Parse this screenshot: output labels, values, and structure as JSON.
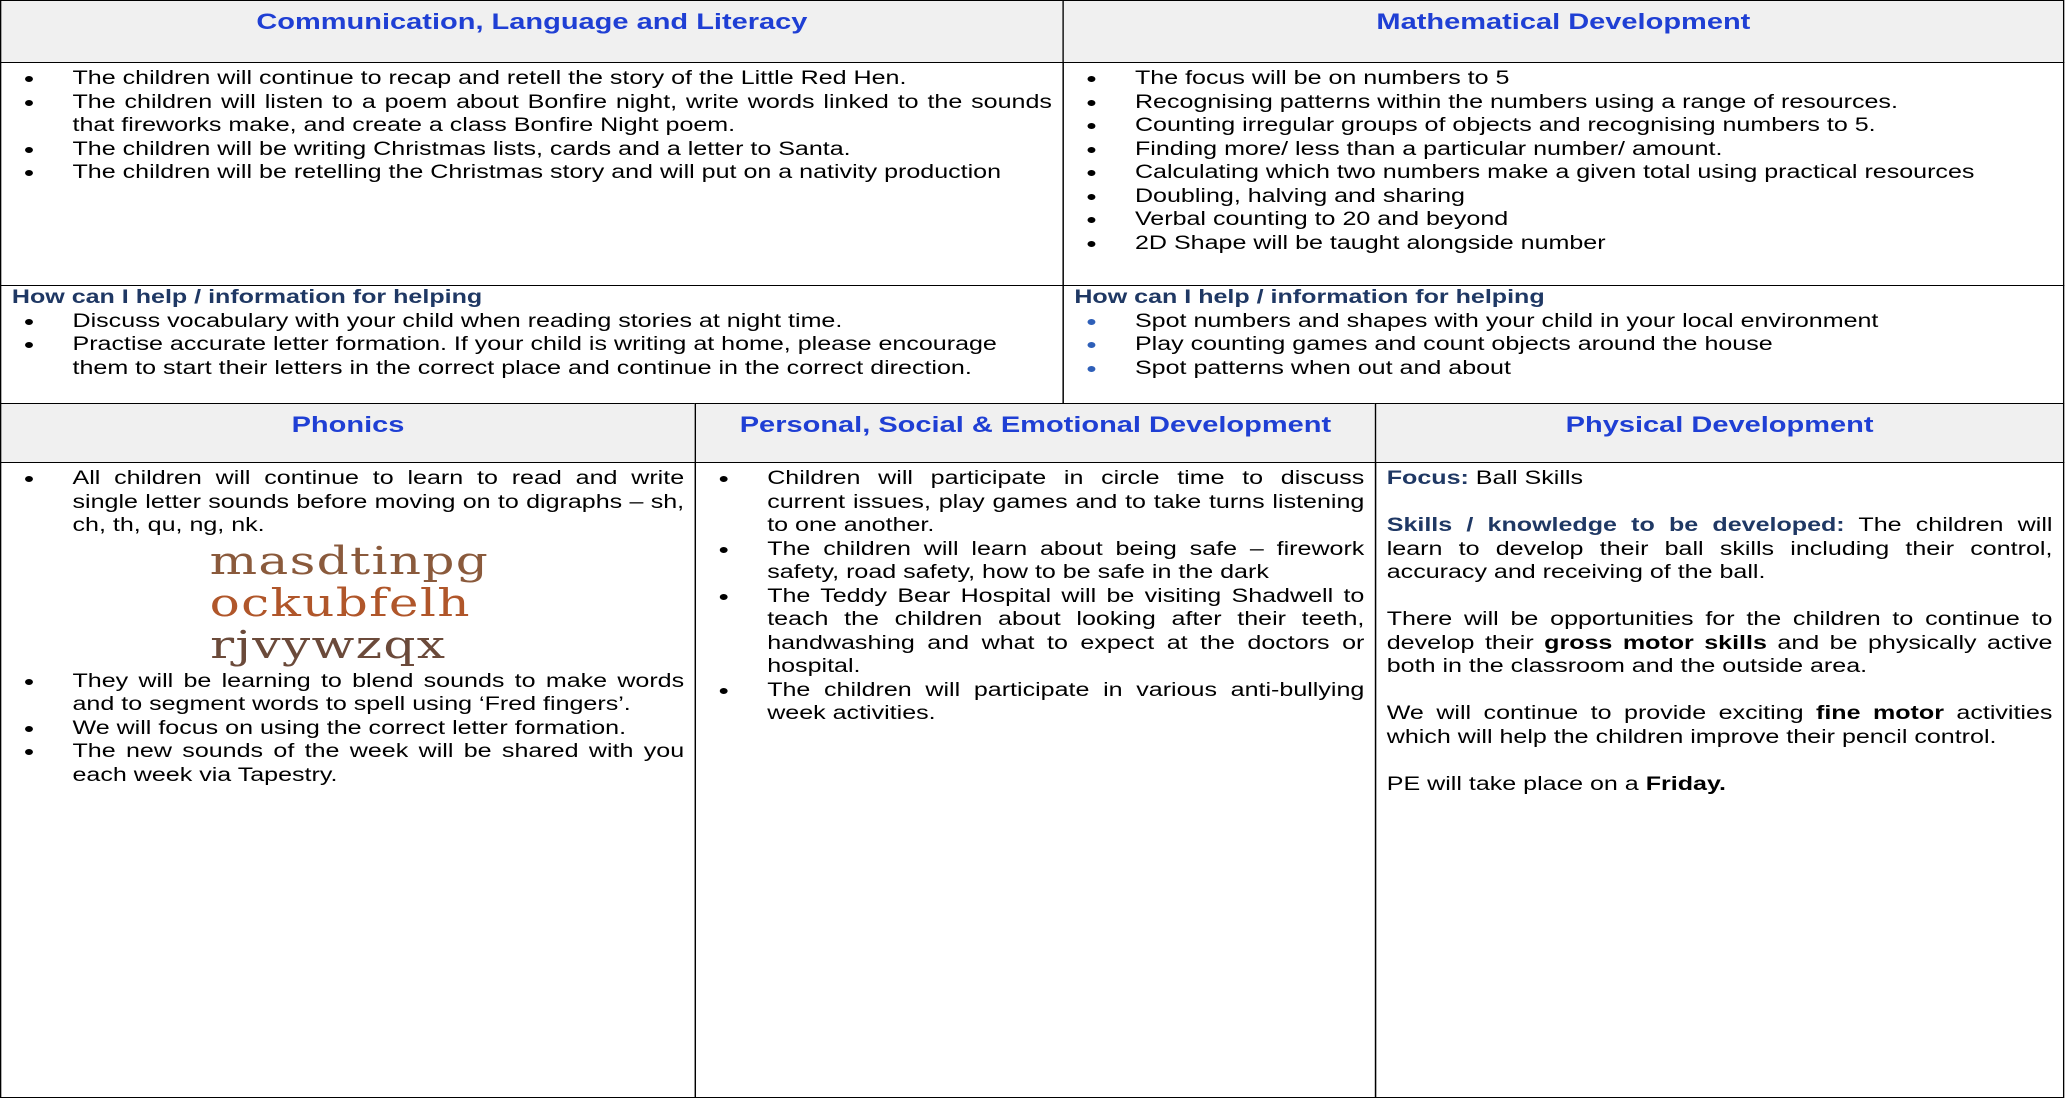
{
  "cll": {
    "heading": "Communication, Language and Literacy",
    "items": [
      "The children will continue to recap and retell the story of the Little Red Hen.",
      "The children will listen to a poem about Bonfire night, write words linked to the sounds that fireworks make, and create a class Bonfire Night poem.",
      "The children will be writing Christmas lists, cards and a letter to Santa.",
      "The children will be retelling the Christmas story and will put on a nativity production"
    ],
    "help_title": "How can I help / information for helping",
    "help_items": [
      "Discuss vocabulary with your child when reading stories at night time.",
      "Practise accurate letter formation. If your child is writing at home, please encourage them to start their letters in the correct place and continue in the correct direction."
    ]
  },
  "maths": {
    "heading": "Mathematical Development",
    "items": [
      "The focus will be on numbers to 5",
      "Recognising patterns within the numbers using a range of resources.",
      "Counting irregular groups of objects and recognising numbers to 5.",
      "Finding more/ less than a particular number/ amount.",
      "Calculating which two numbers make a given total using practical resources",
      "Doubling, halving and sharing",
      "Verbal counting to 20 and beyond",
      "2D Shape will be taught alongside number"
    ],
    "help_title": "How can I help / information for helping",
    "help_items": [
      "Spot numbers and shapes with your child in your local environment",
      "Play counting games and count objects around the house",
      "Spot patterns when out and about"
    ]
  },
  "phonics": {
    "heading": "Phonics",
    "items_before": [
      "All children will continue to learn to read and write single letter sounds before moving on to digraphs – sh, ch, th, qu, ng, nk."
    ],
    "letter_rows": [
      "masdtinpg",
      "ockubfelh",
      "rjvywzqx"
    ],
    "items_after": [
      "They will be learning to blend sounds to make words and to segment words to spell using ‘Fred fingers’.",
      "We will focus on using the correct letter formation.",
      "The new sounds of the week will be shared with you each week via Tapestry."
    ]
  },
  "psed": {
    "heading": "Personal, Social & Emotional Development",
    "items": [
      "Children will participate in circle time to discuss current issues, play games and to take turns listening to one another.",
      "The children will learn about being safe – firework safety, road safety, how to be safe in the dark",
      "The Teddy Bear Hospital will be visiting Shadwell to teach the children about looking after their teeth, handwashing and what to expect at the doctors or hospital.",
      "The children will participate in various anti-bullying week activities."
    ]
  },
  "physical": {
    "heading": "Physical Development",
    "paragraphs": [
      [
        "Focus:",
        " Ball Skills"
      ],
      [
        "Skills / knowledge to be developed:",
        " The children will learn to develop their ball skills including their control, accuracy and receiving of the ball."
      ],
      [
        "There will be opportunities for the children to continue to develop their ",
        "gross motor skills",
        " and be physically active both in the classroom and the outside area."
      ],
      [
        "We will continue to provide exciting ",
        "fine motor",
        " activities which will help the children improve their pencil control."
      ],
      [
        "PE will take place on a ",
        "Friday."
      ]
    ]
  }
}
